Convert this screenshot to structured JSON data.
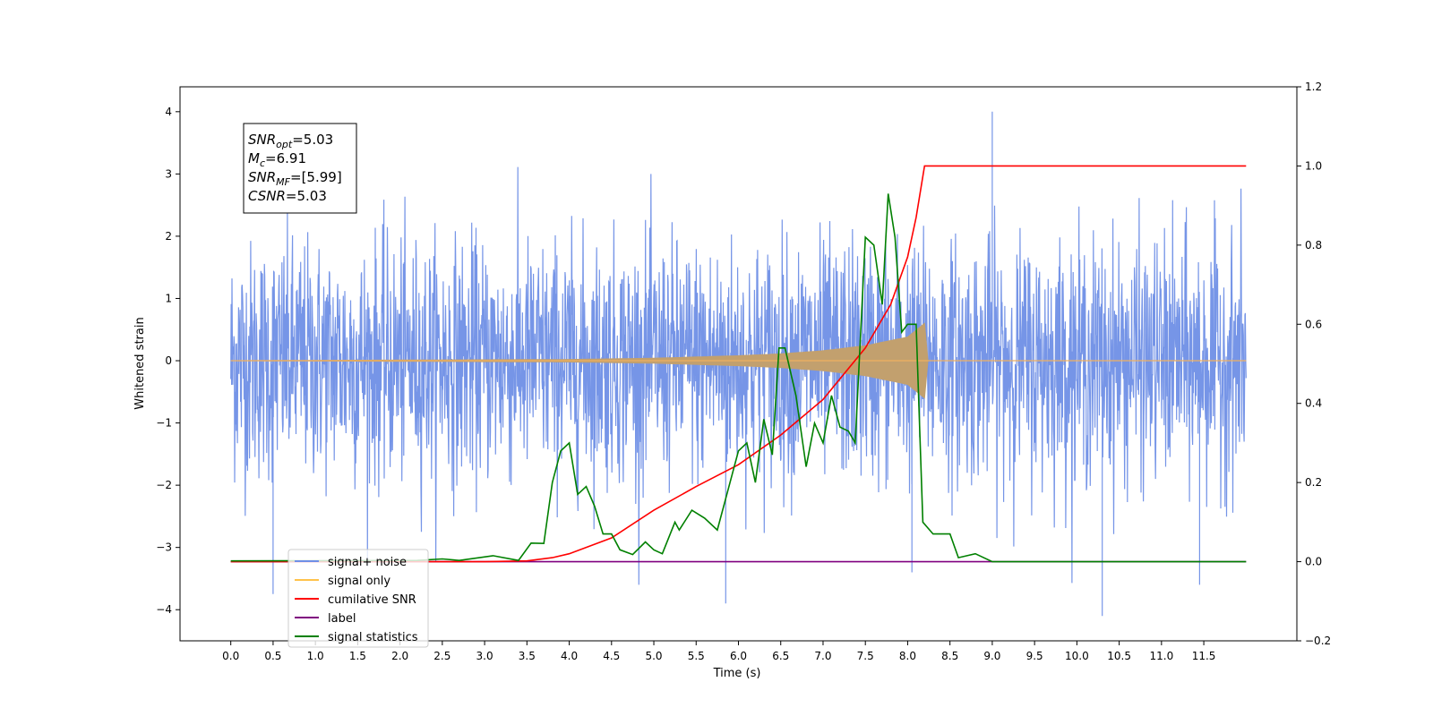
{
  "chart_data": {
    "type": "line",
    "xlabel": "Time (s)",
    "ylabel": "Whitened strain",
    "xlim": [
      -0.6,
      12.6
    ],
    "ylim_left": [
      -4.5,
      4.4
    ],
    "ylim_right": [
      -0.2,
      1.2
    ],
    "x_ticks": [
      0.0,
      0.5,
      1.0,
      1.5,
      2.0,
      2.5,
      3.0,
      3.5,
      4.0,
      4.5,
      5.0,
      5.5,
      6.0,
      6.5,
      7.0,
      7.5,
      8.0,
      8.5,
      9.0,
      9.5,
      10.0,
      10.5,
      11.0,
      11.5
    ],
    "x_tick_labels": [
      "0.0",
      "0.5",
      "1.0",
      "1.5",
      "2.0",
      "2.5",
      "3.0",
      "3.5",
      "4.0",
      "4.5",
      "5.0",
      "5.5",
      "6.0",
      "6.5",
      "7.0",
      "7.5",
      "8.0",
      "8.5",
      "9.0",
      "9.5",
      "10.0",
      "10.5",
      "11.0",
      "11.5"
    ],
    "y_left_ticks": [
      4,
      3,
      2,
      1,
      0,
      -1,
      -2,
      -3,
      -4
    ],
    "y_left_tick_labels": [
      "4",
      "3",
      "2",
      "1",
      "0",
      "−1",
      "−2",
      "−3",
      "−4"
    ],
    "y_right_ticks": [
      1.2,
      1.0,
      0.8,
      0.6,
      0.4,
      0.2,
      0.0,
      -0.2
    ],
    "y_right_tick_labels": [
      "1.2",
      "1.0",
      "0.8",
      "0.6",
      "0.4",
      "0.2",
      "0.0",
      "−0.2"
    ],
    "colors": {
      "signal_noise": "#6f8fe6",
      "signal_only": "#c2a06e",
      "cumulative_snr": "#ff0000",
      "label": "#800080",
      "signal_statistics": "#008000"
    },
    "series": [
      {
        "name": "signal+ noise",
        "axis": "left",
        "description_values": "noise envelope approx ±2.2 with spikes to about 4.0 (peak near t=9.0) and about -4.1 (near t=10.3)",
        "envelope": {
          "t_start": 0.0,
          "t_end": 12.0,
          "typical_max": 2.2,
          "typical_min": -2.2,
          "spike_max": 4.0,
          "spike_min": -4.1
        }
      },
      {
        "name": "signal only",
        "axis": "left",
        "envelope_points": [
          [
            0.0,
            0.0
          ],
          [
            4.0,
            0.02
          ],
          [
            5.0,
            0.04
          ],
          [
            6.0,
            0.08
          ],
          [
            6.5,
            0.11
          ],
          [
            7.0,
            0.16
          ],
          [
            7.5,
            0.24
          ],
          [
            8.0,
            0.38
          ],
          [
            8.2,
            0.6
          ],
          [
            8.22,
            0.0
          ],
          [
            12.0,
            0.0
          ]
        ]
      },
      {
        "name": "cumilative SNR",
        "axis": "right",
        "points": [
          [
            0.0,
            0.0
          ],
          [
            3.0,
            0.0
          ],
          [
            3.5,
            0.002
          ],
          [
            3.8,
            0.01
          ],
          [
            4.0,
            0.02
          ],
          [
            4.5,
            0.06
          ],
          [
            5.0,
            0.13
          ],
          [
            5.5,
            0.19
          ],
          [
            6.0,
            0.245
          ],
          [
            6.5,
            0.32
          ],
          [
            7.0,
            0.41
          ],
          [
            7.5,
            0.54
          ],
          [
            7.8,
            0.65
          ],
          [
            8.0,
            0.77
          ],
          [
            8.1,
            0.87
          ],
          [
            8.2,
            1.0
          ],
          [
            12.0,
            1.0
          ]
        ]
      },
      {
        "name": "label",
        "axis": "right",
        "points": [
          [
            0.0,
            0.0
          ],
          [
            12.0,
            0.0
          ]
        ]
      },
      {
        "name": "signal statistics",
        "axis": "right",
        "points": [
          [
            0.0,
            0.002
          ],
          [
            2.2,
            0.003
          ],
          [
            2.5,
            0.007
          ],
          [
            2.7,
            0.003
          ],
          [
            3.1,
            0.015
          ],
          [
            3.4,
            0.003
          ],
          [
            3.55,
            0.047
          ],
          [
            3.7,
            0.046
          ],
          [
            3.8,
            0.2
          ],
          [
            3.9,
            0.28
          ],
          [
            4.0,
            0.3
          ],
          [
            4.1,
            0.17
          ],
          [
            4.2,
            0.19
          ],
          [
            4.3,
            0.14
          ],
          [
            4.4,
            0.07
          ],
          [
            4.5,
            0.07
          ],
          [
            4.6,
            0.03
          ],
          [
            4.75,
            0.018
          ],
          [
            4.9,
            0.05
          ],
          [
            5.0,
            0.03
          ],
          [
            5.1,
            0.02
          ],
          [
            5.25,
            0.1
          ],
          [
            5.3,
            0.08
          ],
          [
            5.45,
            0.13
          ],
          [
            5.6,
            0.11
          ],
          [
            5.75,
            0.08
          ],
          [
            5.9,
            0.2
          ],
          [
            6.0,
            0.28
          ],
          [
            6.1,
            0.3
          ],
          [
            6.2,
            0.2
          ],
          [
            6.3,
            0.36
          ],
          [
            6.4,
            0.27
          ],
          [
            6.48,
            0.54
          ],
          [
            6.55,
            0.54
          ],
          [
            6.68,
            0.42
          ],
          [
            6.8,
            0.24
          ],
          [
            6.9,
            0.35
          ],
          [
            7.0,
            0.3
          ],
          [
            7.1,
            0.42
          ],
          [
            7.2,
            0.34
          ],
          [
            7.3,
            0.33
          ],
          [
            7.38,
            0.3
          ],
          [
            7.5,
            0.82
          ],
          [
            7.6,
            0.8
          ],
          [
            7.7,
            0.65
          ],
          [
            7.77,
            0.93
          ],
          [
            7.85,
            0.82
          ],
          [
            7.93,
            0.58
          ],
          [
            8.0,
            0.6
          ],
          [
            8.1,
            0.6
          ],
          [
            8.18,
            0.1
          ],
          [
            8.3,
            0.07
          ],
          [
            8.5,
            0.07
          ],
          [
            8.6,
            0.01
          ],
          [
            8.8,
            0.02
          ],
          [
            9.0,
            0.0
          ],
          [
            9.5,
            0.0
          ],
          [
            12.0,
            0.0
          ]
        ]
      }
    ],
    "legend": {
      "placement": "lower-left",
      "entries": [
        "signal+ noise",
        "signal only",
        "cumilative SNR",
        "label",
        "signal statistics"
      ]
    },
    "annotation": {
      "lines": [
        {
          "sym": "SNR",
          "sub": "opt",
          "value": "=5.03"
        },
        {
          "sym": "M",
          "sub": "c",
          "value": "=6.91"
        },
        {
          "sym": "SNR",
          "sub": "MF",
          "value": "=[5.99]"
        },
        {
          "sym": "CSNR",
          "sub": "",
          "value": "=5.03"
        }
      ]
    },
    "grid": false
  }
}
